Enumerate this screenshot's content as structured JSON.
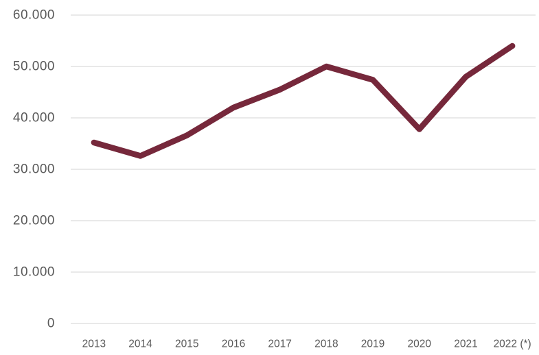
{
  "chart_data": {
    "type": "line",
    "title": "",
    "xlabel": "",
    "ylabel": "",
    "categories": [
      "2013",
      "2014",
      "2015",
      "2016",
      "2017",
      "2018",
      "2019",
      "2020",
      "2021",
      "2022 (*)"
    ],
    "series": [
      {
        "name": "value",
        "values": [
          35200,
          32600,
          36600,
          42000,
          45500,
          50000,
          47400,
          37800,
          48000,
          54000
        ]
      }
    ],
    "ylim": [
      0,
      60000
    ],
    "y_ticks": [
      {
        "value": 0,
        "label": "0"
      },
      {
        "value": 10000,
        "label": "10.000"
      },
      {
        "value": 20000,
        "label": "20.000"
      },
      {
        "value": 30000,
        "label": "30.000"
      },
      {
        "value": 40000,
        "label": "40.000"
      },
      {
        "value": 50000,
        "label": "50.000"
      },
      {
        "value": 60000,
        "label": "60.000"
      }
    ],
    "grid": "horizontal-only",
    "legend_position": "none",
    "colors": {
      "line": "#76283B",
      "gridline": "#DCDCDC",
      "tick_label": "#595959",
      "background": "#FFFFFF"
    },
    "line_width": 8.5
  }
}
